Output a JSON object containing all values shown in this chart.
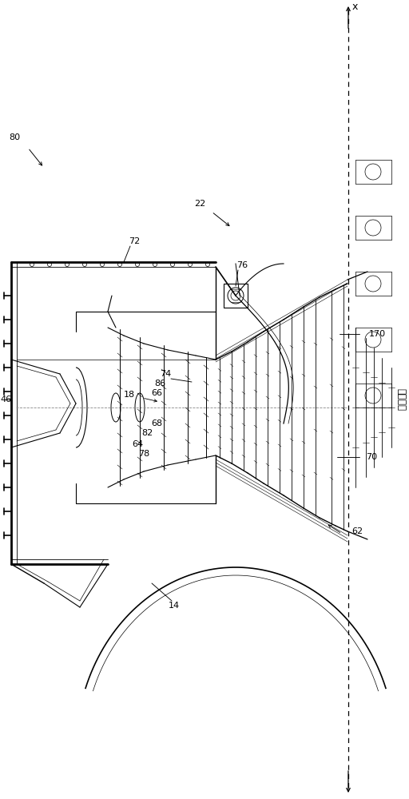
{
  "background_color": "#ffffff",
  "fig_width": 5.12,
  "fig_height": 10.0,
  "dpi": 100,
  "side_text": "现有技术",
  "x_label": "x"
}
